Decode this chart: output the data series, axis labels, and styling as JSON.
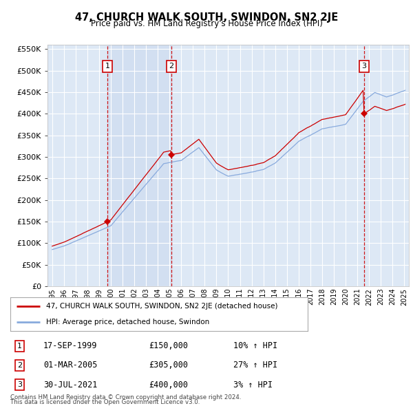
{
  "title": "47, CHURCH WALK SOUTH, SWINDON, SN2 2JE",
  "subtitle": "Price paid vs. HM Land Registry's House Price Index (HPI)",
  "background_color": "#ffffff",
  "plot_bg_color": "#dde8f5",
  "grid_color": "#ffffff",
  "red_color": "#cc0000",
  "blue_color": "#88aadd",
  "vline_color": "#cc0000",
  "purchase_date_nums": [
    1999.72,
    2005.17,
    2021.58
  ],
  "purchase_prices": [
    150000,
    305000,
    400000
  ],
  "purchase_labels": [
    "1",
    "2",
    "3"
  ],
  "purchase_dates_str": [
    "17-SEP-1999",
    "01-MAR-2005",
    "30-JUL-2021"
  ],
  "purchase_prices_str": [
    "£150,000",
    "£305,000",
    "£400,000"
  ],
  "purchase_hpi_str": [
    "10% ↑ HPI",
    "27% ↑ HPI",
    "3% ↑ HPI"
  ],
  "legend_line1": "47, CHURCH WALK SOUTH, SWINDON, SN2 2JE (detached house)",
  "legend_line2": "HPI: Average price, detached house, Swindon",
  "footer1": "Contains HM Land Registry data © Crown copyright and database right 2024.",
  "footer2": "This data is licensed under the Open Government Licence v3.0.",
  "ylim": [
    0,
    560000
  ],
  "xlim_start": 1994.6,
  "xlim_end": 2025.4
}
